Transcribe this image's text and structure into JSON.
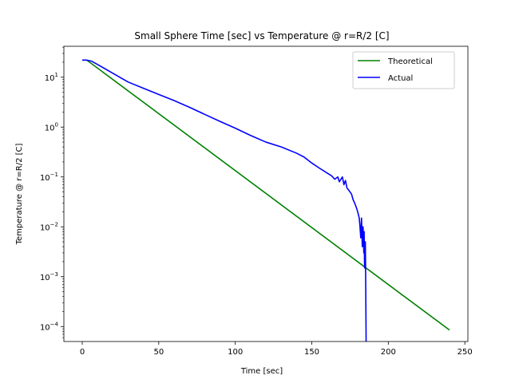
{
  "chart_data": {
    "type": "line",
    "title": "Small Sphere Time [sec] vs Temperature @ r=R/2 [C]",
    "xlabel": "Time [sec]",
    "ylabel": "Temperature @ r=R/2 [C]",
    "xlim": [
      -12,
      252
    ],
    "ylim_log10": [
      -4.3,
      1.62
    ],
    "yscale": "log",
    "grid": false,
    "legend_position": "top-right",
    "x_ticks": [
      {
        "value": 0,
        "label": "0"
      },
      {
        "value": 50,
        "label": "50"
      },
      {
        "value": 100,
        "label": "100"
      },
      {
        "value": 150,
        "label": "150"
      },
      {
        "value": 200,
        "label": "200"
      },
      {
        "value": 250,
        "label": "250"
      }
    ],
    "y_ticks": [
      {
        "exp": 1,
        "base": "10",
        "sup": "1"
      },
      {
        "exp": 0,
        "base": "10",
        "sup": "0"
      },
      {
        "exp": -1,
        "base": "10",
        "sup": "−1"
      },
      {
        "exp": -2,
        "base": "10",
        "sup": "−2"
      },
      {
        "exp": -3,
        "base": "10",
        "sup": "−3"
      },
      {
        "exp": -4,
        "base": "10",
        "sup": "−4"
      }
    ],
    "series": [
      {
        "name": "Theoretical",
        "color": "#008000",
        "x": [
          0,
          3,
          240
        ],
        "y": [
          22,
          22,
          8.5e-05
        ]
      },
      {
        "name": "Actual",
        "color": "#0000ff",
        "x": [
          0,
          3,
          6,
          10,
          20,
          30,
          40,
          50,
          60,
          70,
          80,
          90,
          100,
          110,
          120,
          130,
          140,
          145,
          150,
          155,
          160,
          163,
          165,
          167,
          168,
          170,
          171,
          172,
          173,
          175,
          176,
          177,
          178,
          179,
          180,
          181,
          181.5,
          182,
          182.5,
          183,
          183.5,
          184,
          184.2,
          184.5,
          185,
          185.2,
          185.5
        ],
        "y": [
          22,
          22,
          21,
          18,
          12,
          8,
          6,
          4.5,
          3.4,
          2.5,
          1.8,
          1.3,
          0.95,
          0.68,
          0.5,
          0.4,
          0.3,
          0.25,
          0.19,
          0.15,
          0.12,
          0.105,
          0.09,
          0.1,
          0.08,
          0.1,
          0.07,
          0.085,
          0.06,
          0.05,
          0.045,
          0.035,
          0.03,
          0.025,
          0.02,
          0.015,
          0.01,
          0.006,
          0.015,
          0.004,
          0.01,
          0.003,
          0.008,
          0.0015,
          0.005,
          0.001,
          5e-05
        ]
      }
    ]
  }
}
